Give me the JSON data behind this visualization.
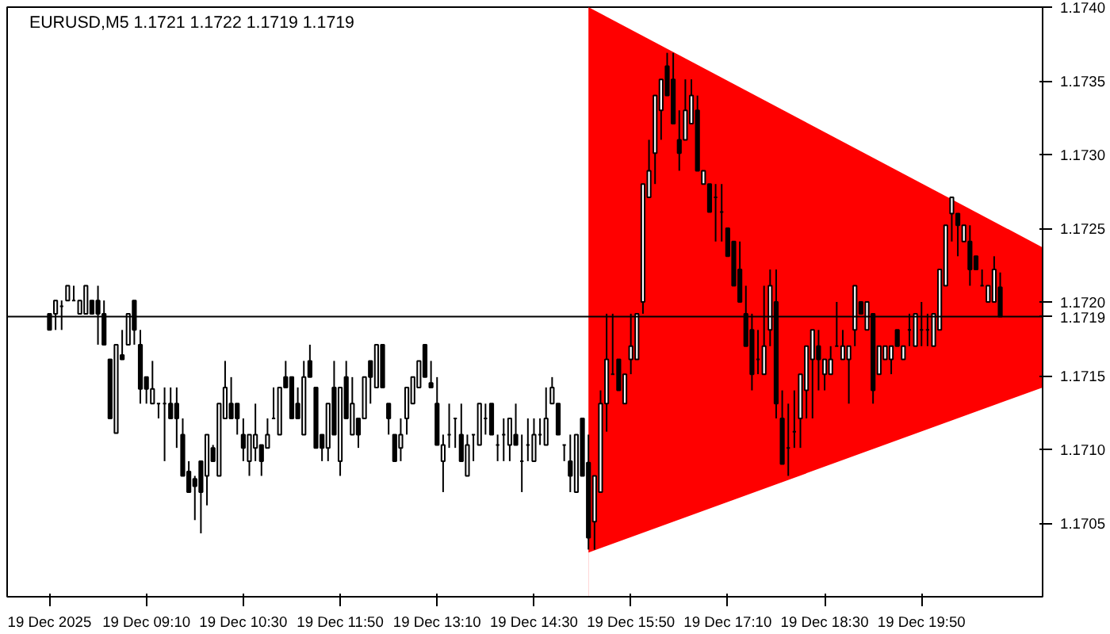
{
  "chart_data": {
    "type": "candlestick",
    "title": "EURUSD,M5  1.1721 1.1722 1.1719 1.1719",
    "color": "#000000",
    "x": [
      "2025-12-19T07:50",
      "2025-12-19T07:55",
      "2025-12-19T08:00",
      "2025-12-19T08:05",
      "2025-12-19T08:10",
      "2025-12-19T08:15",
      "2025-12-19T08:20",
      "2025-12-19T08:25",
      "2025-12-19T08:30",
      "2025-12-19T08:35",
      "2025-12-19T08:40",
      "2025-12-19T08:45",
      "2025-12-19T08:50",
      "2025-12-19T08:55",
      "2025-12-19T09:00",
      "2025-12-19T09:05",
      "2025-12-19T09:10",
      "2025-12-19T09:15",
      "2025-12-19T09:20",
      "2025-12-19T09:25",
      "2025-12-19T09:30",
      "2025-12-19T09:35",
      "2025-12-19T09:40",
      "2025-12-19T09:45",
      "2025-12-19T09:50",
      "2025-12-19T09:55",
      "2025-12-19T10:00",
      "2025-12-19T10:05",
      "2025-12-19T10:10",
      "2025-12-19T10:15",
      "2025-12-19T10:20",
      "2025-12-19T10:25",
      "2025-12-19T10:30",
      "2025-12-19T10:35",
      "2025-12-19T10:40",
      "2025-12-19T10:45",
      "2025-12-19T10:50",
      "2025-12-19T10:55",
      "2025-12-19T11:00",
      "2025-12-19T11:05",
      "2025-12-19T11:10",
      "2025-12-19T11:15",
      "2025-12-19T11:20",
      "2025-12-19T11:25",
      "2025-12-19T11:30",
      "2025-12-19T11:35",
      "2025-12-19T11:40",
      "2025-12-19T11:45",
      "2025-12-19T11:50",
      "2025-12-19T11:55",
      "2025-12-19T12:00",
      "2025-12-19T12:05",
      "2025-12-19T12:10",
      "2025-12-19T12:15",
      "2025-12-19T12:20",
      "2025-12-19T12:25",
      "2025-12-19T12:30",
      "2025-12-19T12:35",
      "2025-12-19T12:40",
      "2025-12-19T12:45",
      "2025-12-19T12:50",
      "2025-12-19T12:55",
      "2025-12-19T13:00",
      "2025-12-19T13:05",
      "2025-12-19T13:10",
      "2025-12-19T13:15",
      "2025-12-19T13:20",
      "2025-12-19T13:25",
      "2025-12-19T13:30",
      "2025-12-19T13:35",
      "2025-12-19T13:40",
      "2025-12-19T13:45",
      "2025-12-19T13:50",
      "2025-12-19T13:55",
      "2025-12-19T14:00",
      "2025-12-19T14:05",
      "2025-12-19T14:10",
      "2025-12-19T14:15",
      "2025-12-19T14:20",
      "2025-12-19T14:25",
      "2025-12-19T14:30",
      "2025-12-19T14:35",
      "2025-12-19T14:40",
      "2025-12-19T14:45",
      "2025-12-19T14:50",
      "2025-12-19T14:55",
      "2025-12-19T15:00",
      "2025-12-19T15:05",
      "2025-12-19T15:10",
      "2025-12-19T15:15",
      "2025-12-19T15:20",
      "2025-12-19T15:25",
      "2025-12-19T15:30",
      "2025-12-19T15:35",
      "2025-12-19T15:40",
      "2025-12-19T15:45",
      "2025-12-19T15:50",
      "2025-12-19T15:55",
      "2025-12-19T16:00",
      "2025-12-19T16:05",
      "2025-12-19T16:10",
      "2025-12-19T16:15",
      "2025-12-19T16:20",
      "2025-12-19T16:25",
      "2025-12-19T16:30",
      "2025-12-19T16:35",
      "2025-12-19T16:40",
      "2025-12-19T16:45",
      "2025-12-19T16:50",
      "2025-12-19T16:55",
      "2025-12-19T17:00",
      "2025-12-19T17:05",
      "2025-12-19T17:10",
      "2025-12-19T17:15",
      "2025-12-19T17:20",
      "2025-12-19T17:25",
      "2025-12-19T17:30",
      "2025-12-19T17:35",
      "2025-12-19T17:40",
      "2025-12-19T17:45",
      "2025-12-19T17:50",
      "2025-12-19T17:55",
      "2025-12-19T18:00",
      "2025-12-19T18:05",
      "2025-12-19T18:10",
      "2025-12-19T18:15",
      "2025-12-19T18:20",
      "2025-12-19T18:25",
      "2025-12-19T18:30",
      "2025-12-19T18:35",
      "2025-12-19T18:40",
      "2025-12-19T18:45",
      "2025-12-19T18:50",
      "2025-12-19T18:55",
      "2025-12-19T19:00",
      "2025-12-19T19:05",
      "2025-12-19T19:10",
      "2025-12-19T19:15",
      "2025-12-19T19:20",
      "2025-12-19T19:25",
      "2025-12-19T19:30",
      "2025-12-19T19:35",
      "2025-12-19T19:40",
      "2025-12-19T19:45",
      "2025-12-19T19:50",
      "2025-12-19T19:55",
      "2025-12-19T20:00",
      "2025-12-19T20:05",
      "2025-12-19T20:10",
      "2025-12-19T20:15",
      "2025-12-19T20:20",
      "2025-12-19T20:25",
      "2025-12-19T20:30",
      "2025-12-19T20:35",
      "2025-12-19T20:40",
      "2025-12-19T20:45",
      "2025-12-19T20:50",
      "2025-12-19T20:55"
    ],
    "ohlc": [
      [
        1.17192,
        1.17192,
        1.17181,
        1.17181
      ],
      [
        1.17192,
        1.17201,
        1.17181,
        1.17201
      ],
      [
        1.17197,
        1.17201,
        1.17181,
        1.17197
      ],
      [
        1.17201,
        1.17211,
        1.17201,
        1.17211
      ],
      [
        1.17201,
        1.17211,
        1.17201,
        1.17201
      ],
      [
        1.17192,
        1.17201,
        1.17192,
        1.17201
      ],
      [
        1.17192,
        1.17211,
        1.17192,
        1.17211
      ],
      [
        1.17201,
        1.17201,
        1.17192,
        1.17192
      ],
      [
        1.17201,
        1.17211,
        1.17171,
        1.17192
      ],
      [
        1.17192,
        1.17201,
        1.17171,
        1.17171
      ],
      [
        1.17161,
        1.17161,
        1.17121,
        1.17121
      ],
      [
        1.17111,
        1.17171,
        1.17111,
        1.17171
      ],
      [
        1.17164,
        1.17181,
        1.17161,
        1.17161
      ],
      [
        1.17171,
        1.17192,
        1.17171,
        1.17192
      ],
      [
        1.17201,
        1.17201,
        1.17171,
        1.17181
      ],
      [
        1.17171,
        1.17181,
        1.17131,
        1.17141
      ],
      [
        1.17149,
        1.17149,
        1.17131,
        1.17141
      ],
      [
        1.17131,
        1.1716,
        1.17131,
        1.17141
      ],
      [
        1.17131,
        1.17131,
        1.17121,
        1.17131
      ],
      [
        1.17131,
        1.17142,
        1.17092,
        1.17131
      ],
      [
        1.17131,
        1.17142,
        1.17121,
        1.17121
      ],
      [
        1.17131,
        1.17142,
        1.17101,
        1.17121
      ],
      [
        1.1711,
        1.17121,
        1.17082,
        1.17082
      ],
      [
        1.17085,
        1.17092,
        1.17071,
        1.17071
      ],
      [
        1.1708,
        1.17082,
        1.17052,
        1.17075
      ],
      [
        1.17092,
        1.17092,
        1.17043,
        1.17071
      ],
      [
        1.17082,
        1.1711,
        1.17062,
        1.1711
      ],
      [
        1.17101,
        1.17103,
        1.17092,
        1.17092
      ],
      [
        1.17082,
        1.17131,
        1.17082,
        1.17131
      ],
      [
        1.17121,
        1.1716,
        1.17121,
        1.17142
      ],
      [
        1.17131,
        1.17149,
        1.17121,
        1.17121
      ],
      [
        1.17131,
        1.17131,
        1.1711,
        1.17121
      ],
      [
        1.1711,
        1.17121,
        1.17092,
        1.17101
      ],
      [
        1.17092,
        1.1711,
        1.17082,
        1.1711
      ],
      [
        1.17101,
        1.17131,
        1.17092,
        1.1711
      ],
      [
        1.17103,
        1.17103,
        1.17082,
        1.17092
      ],
      [
        1.17101,
        1.17121,
        1.17101,
        1.1711
      ],
      [
        1.17121,
        1.17142,
        1.17121,
        1.17121
      ],
      [
        1.1711,
        1.17142,
        1.1711,
        1.17142
      ],
      [
        1.17149,
        1.1716,
        1.17142,
        1.17142
      ],
      [
        1.17149,
        1.17149,
        1.17121,
        1.17121
      ],
      [
        1.17131,
        1.17142,
        1.17121,
        1.17121
      ],
      [
        1.1711,
        1.1716,
        1.1711,
        1.17149
      ],
      [
        1.1716,
        1.17171,
        1.17149,
        1.17149
      ],
      [
        1.17142,
        1.17142,
        1.17101,
        1.17101
      ],
      [
        1.1711,
        1.1711,
        1.17092,
        1.17101
      ],
      [
        1.17101,
        1.17131,
        1.17092,
        1.17131
      ],
      [
        1.17142,
        1.1716,
        1.1711,
        1.1711
      ],
      [
        1.17092,
        1.17142,
        1.17082,
        1.17142
      ],
      [
        1.17149,
        1.1716,
        1.17121,
        1.17121
      ],
      [
        1.1711,
        1.17149,
        1.1711,
        1.17131
      ],
      [
        1.17121,
        1.17121,
        1.17101,
        1.1711
      ],
      [
        1.17121,
        1.17149,
        1.17121,
        1.17149
      ],
      [
        1.1716,
        1.1716,
        1.17131,
        1.17149
      ],
      [
        1.17142,
        1.17171,
        1.17142,
        1.17171
      ],
      [
        1.17171,
        1.17171,
        1.17142,
        1.17142
      ],
      [
        1.17131,
        1.17131,
        1.1711,
        1.17121
      ],
      [
        1.1711,
        1.1711,
        1.17092,
        1.17092
      ],
      [
        1.17101,
        1.17121,
        1.17092,
        1.1711
      ],
      [
        1.17121,
        1.17142,
        1.1711,
        1.17142
      ],
      [
        1.17131,
        1.17149,
        1.17131,
        1.17149
      ],
      [
        1.17142,
        1.1716,
        1.17142,
        1.1716
      ],
      [
        1.17171,
        1.17171,
        1.17149,
        1.17149
      ],
      [
        1.17145,
        1.1716,
        1.17142,
        1.17142
      ],
      [
        1.17131,
        1.17149,
        1.17103,
        1.17103
      ],
      [
        1.17092,
        1.1711,
        1.17071,
        1.17103
      ],
      [
        1.1711,
        1.17131,
        1.17101,
        1.1711
      ],
      [
        1.17121,
        1.17121,
        1.17101,
        1.17121
      ],
      [
        1.1711,
        1.17131,
        1.17092,
        1.17092
      ],
      [
        1.17082,
        1.1711,
        1.17082,
        1.17103
      ],
      [
        1.1711,
        1.1711,
        1.17092,
        1.1711
      ],
      [
        1.17103,
        1.17131,
        1.17103,
        1.17131
      ],
      [
        1.17121,
        1.17131,
        1.1711,
        1.17121
      ],
      [
        1.17131,
        1.17131,
        1.1711,
        1.1711
      ],
      [
        1.17103,
        1.1711,
        1.17092,
        1.17103
      ],
      [
        1.1711,
        1.17121,
        1.17092,
        1.1711
      ],
      [
        1.17103,
        1.17121,
        1.17092,
        1.17121
      ],
      [
        1.1711,
        1.17131,
        1.17103,
        1.17103
      ],
      [
        1.17092,
        1.1711,
        1.17071,
        1.17092
      ],
      [
        1.17103,
        1.17121,
        1.17092,
        1.17103
      ],
      [
        1.17092,
        1.17121,
        1.17092,
        1.1711
      ],
      [
        1.1711,
        1.17121,
        1.17103,
        1.1711
      ],
      [
        1.17103,
        1.17142,
        1.17103,
        1.17121
      ],
      [
        1.17131,
        1.17149,
        1.17131,
        1.17142
      ],
      [
        1.17131,
        1.17131,
        1.1711,
        1.1711
      ],
      [
        1.17103,
        1.17103,
        1.17092,
        1.17103
      ],
      [
        1.17092,
        1.1711,
        1.17071,
        1.17082
      ],
      [
        1.17071,
        1.1711,
        1.17071,
        1.1711
      ],
      [
        1.17121,
        1.17121,
        1.17082,
        1.17082
      ],
      [
        1.17091,
        1.1711,
        1.17032,
        1.1704
      ],
      [
        1.17051,
        1.17082,
        1.17032,
        1.17082
      ],
      [
        1.17071,
        1.1714,
        1.17071,
        1.17131
      ],
      [
        1.17131,
        1.17192,
        1.17112,
        1.17161
      ],
      [
        1.17151,
        1.17192,
        1.17151,
        1.17151
      ],
      [
        1.17161,
        1.17161,
        1.1714,
        1.1714
      ],
      [
        1.17131,
        1.17151,
        1.17131,
        1.17151
      ],
      [
        1.17161,
        1.17192,
        1.17151,
        1.1717
      ],
      [
        1.17161,
        1.17192,
        1.17161,
        1.17192
      ],
      [
        1.172,
        1.1728,
        1.17192,
        1.1728
      ],
      [
        1.17271,
        1.1731,
        1.17271,
        1.17289
      ],
      [
        1.17301,
        1.1734,
        1.1728,
        1.1734
      ],
      [
        1.1733,
        1.17351,
        1.1731,
        1.17351
      ],
      [
        1.1736,
        1.17369,
        1.1734,
        1.1734
      ],
      [
        1.17351,
        1.17369,
        1.17321,
        1.17321
      ],
      [
        1.1731,
        1.1733,
        1.17289,
        1.17301
      ],
      [
        1.1731,
        1.17351,
        1.1731,
        1.1733
      ],
      [
        1.17321,
        1.17351,
        1.17321,
        1.1734
      ],
      [
        1.1733,
        1.1734,
        1.17289,
        1.17289
      ],
      [
        1.1728,
        1.17289,
        1.1728,
        1.17289
      ],
      [
        1.1728,
        1.1728,
        1.17261,
        1.17261
      ],
      [
        1.17271,
        1.1728,
        1.17241,
        1.17271
      ],
      [
        1.17261,
        1.1728,
        1.17241,
        1.17261
      ],
      [
        1.1725,
        1.1725,
        1.17231,
        1.17231
      ],
      [
        1.17241,
        1.17241,
        1.17211,
        1.17211
      ],
      [
        1.17222,
        1.17241,
        1.172,
        1.172
      ],
      [
        1.17192,
        1.17211,
        1.1717,
        1.1717
      ],
      [
        1.17181,
        1.17192,
        1.1714,
        1.17151
      ],
      [
        1.17161,
        1.17181,
        1.17151,
        1.17161
      ],
      [
        1.17151,
        1.17211,
        1.17151,
        1.1717
      ],
      [
        1.17181,
        1.17222,
        1.1717,
        1.17211
      ],
      [
        1.172,
        1.17222,
        1.17121,
        1.17131
      ],
      [
        1.17121,
        1.1714,
        1.1709,
        1.1709
      ],
      [
        1.17101,
        1.17131,
        1.17082,
        1.17101
      ],
      [
        1.17112,
        1.1714,
        1.17101,
        1.17112
      ],
      [
        1.17121,
        1.17151,
        1.17101,
        1.17151
      ],
      [
        1.1714,
        1.1717,
        1.17121,
        1.1717
      ],
      [
        1.17161,
        1.17181,
        1.17121,
        1.17181
      ],
      [
        1.1717,
        1.17181,
        1.1714,
        1.17161
      ],
      [
        1.17151,
        1.17161,
        1.1714,
        1.17161
      ],
      [
        1.17151,
        1.1717,
        1.17151,
        1.17161
      ],
      [
        1.1717,
        1.172,
        1.1717,
        1.1717
      ],
      [
        1.17161,
        1.17181,
        1.17161,
        1.1717
      ],
      [
        1.17161,
        1.1717,
        1.17131,
        1.1717
      ],
      [
        1.17181,
        1.17211,
        1.1717,
        1.17211
      ],
      [
        1.172,
        1.172,
        1.17192,
        1.17192
      ],
      [
        1.17181,
        1.172,
        1.17181,
        1.172
      ],
      [
        1.17192,
        1.17192,
        1.17131,
        1.1714
      ],
      [
        1.17151,
        1.1717,
        1.17151,
        1.1717
      ],
      [
        1.17161,
        1.1717,
        1.17161,
        1.1717
      ],
      [
        1.17161,
        1.1717,
        1.17151,
        1.1717
      ],
      [
        1.17181,
        1.17181,
        1.1717,
        1.1717
      ],
      [
        1.17161,
        1.1717,
        1.17161,
        1.1717
      ],
      [
        1.17181,
        1.17192,
        1.1717,
        1.17181
      ],
      [
        1.1717,
        1.17192,
        1.1717,
        1.17192
      ],
      [
        1.17181,
        1.172,
        1.1717,
        1.17181
      ],
      [
        1.17181,
        1.17192,
        1.1717,
        1.17181
      ],
      [
        1.1717,
        1.17192,
        1.1717,
        1.17192
      ],
      [
        1.17181,
        1.17222,
        1.17181,
        1.17222
      ],
      [
        1.17211,
        1.17252,
        1.17211,
        1.17252
      ],
      [
        1.1726,
        1.17271,
        1.17241,
        1.17271
      ],
      [
        1.1726,
        1.1726,
        1.17231,
        1.17252
      ],
      [
        1.17241,
        1.17252,
        1.17241,
        1.17252
      ],
      [
        1.17241,
        1.17252,
        1.17211,
        1.17222
      ],
      [
        1.17231,
        1.17231,
        1.17222,
        1.17222
      ],
      [
        1.17211,
        1.17222,
        1.17211,
        1.17211
      ],
      [
        1.172,
        1.17211,
        1.172,
        1.17211
      ],
      [
        1.172,
        1.17231,
        1.172,
        1.17222
      ],
      [
        1.1721,
        1.1722,
        1.1719,
        1.1719
      ]
    ],
    "series": [
      {
        "type": "area",
        "color": "#ff0000",
        "x": [
          "2025-12-19T15:15",
          "2025-12-19T21:30"
        ],
        "values": [
          1.174,
          1.17237
        ]
      },
      {
        "type": "area",
        "color": "#ffffff",
        "x": [
          "2025-12-19T15:15",
          "2025-12-19T21:30"
        ],
        "values": [
          1.1703,
          1.17142
        ]
      }
    ],
    "ref_lines": [
      {
        "axis": "y",
        "value": 1.1719,
        "label": "1.1719",
        "color": "#000000"
      }
    ],
    "xlim": [
      "2025-12-19T07:15",
      "2025-12-19T21:30"
    ],
    "xticks": [
      {
        "value": "2025-12-19T07:50",
        "label": "19 Dec 2025"
      },
      {
        "value": "2025-12-19T09:10",
        "label": "19 Dec 09:10"
      },
      {
        "value": "2025-12-19T10:30",
        "label": "19 Dec 10:30"
      },
      {
        "value": "2025-12-19T11:50",
        "label": "19 Dec 11:50"
      },
      {
        "value": "2025-12-19T13:10",
        "label": "19 Dec 13:10"
      },
      {
        "value": "2025-12-19T14:30",
        "label": "19 Dec 14:30"
      },
      {
        "value": "2025-12-19T15:50",
        "label": "19 Dec 15:50"
      },
      {
        "value": "2025-12-19T17:10",
        "label": "19 Dec 17:10"
      },
      {
        "value": "2025-12-19T18:30",
        "label": "19 Dec 18:30"
      },
      {
        "value": "2025-12-19T19:50",
        "label": "19 Dec 19:50"
      }
    ],
    "ylim": [
      1.17,
      1.174
    ],
    "yticks": [
      {
        "value": 1.1705,
        "label": "1.1705"
      },
      {
        "value": 1.171,
        "label": "1.1710"
      },
      {
        "value": 1.1715,
        "label": "1.1715"
      },
      {
        "value": 1.172,
        "label": "1.1720"
      },
      {
        "value": 1.1725,
        "label": "1.1725"
      },
      {
        "value": 1.173,
        "label": "1.1730"
      },
      {
        "value": 1.1735,
        "label": "1.1735"
      },
      {
        "value": 1.174,
        "label": "1.1740"
      }
    ]
  }
}
